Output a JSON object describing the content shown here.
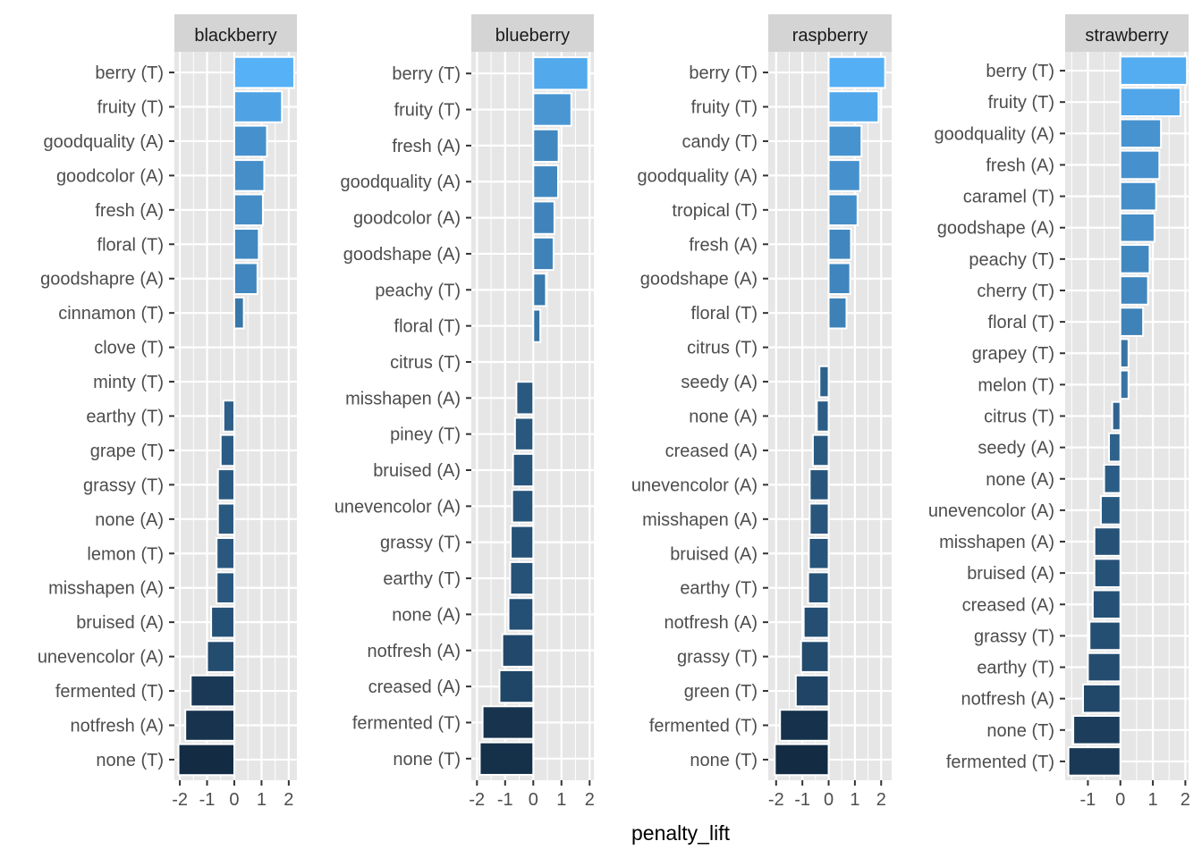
{
  "chart_data": {
    "type": "bar",
    "orientation": "horizontal",
    "xlabel": "penalty_lift",
    "ylabel": "",
    "grid": true,
    "legend": "none",
    "colors": {
      "panel_bg": "#e6e6e6",
      "grid": "#ffffff",
      "strip_bg": "#d4d4d4",
      "low": "#132b43",
      "high": "#56b1f7",
      "bar_outline": "#ffffff"
    },
    "panels": [
      {
        "title": "blackberry",
        "xlim": [
          -2.2,
          2.3
        ],
        "xticks": [
          -2,
          -1,
          0,
          1,
          2
        ],
        "xtick_labels": [
          "-2",
          "-1",
          "0",
          "1",
          "2"
        ],
        "categories": [
          "berry (T)",
          "fruity (T)",
          "goodquality (A)",
          "goodcolor (A)",
          "fresh (A)",
          "floral (T)",
          "goodshapre (A)",
          "cinnamon (T)",
          "clove (T)",
          "minty (T)",
          "earthy (T)",
          "grape (T)",
          "grassy (T)",
          "none (A)",
          "lemon (T)",
          "misshapen (A)",
          "bruised (A)",
          "unevencolor (A)",
          "fermented (T)",
          "notfresh (A)",
          "none (T)"
        ],
        "values": [
          2.2,
          1.75,
          1.2,
          1.1,
          1.05,
          0.9,
          0.85,
          0.35,
          0.0,
          0.0,
          -0.4,
          -0.5,
          -0.6,
          -0.6,
          -0.65,
          -0.65,
          -0.85,
          -1.0,
          -1.6,
          -1.8,
          -2.05
        ]
      },
      {
        "title": "blueberry",
        "xlim": [
          -2.2,
          2.15
        ],
        "xticks": [
          -2,
          -1,
          0,
          1,
          2
        ],
        "xtick_labels": [
          "-2",
          "-1",
          "0",
          "1",
          "2"
        ],
        "categories": [
          "berry (T)",
          "fruity (T)",
          "fresh (A)",
          "goodquality (A)",
          "goodcolor (A)",
          "goodshape (A)",
          "peachy (T)",
          "floral (T)",
          "citrus (T)",
          "misshapen (A)",
          "piney (T)",
          "bruised (A)",
          "unevencolor (A)",
          "grassy (T)",
          "earthy (T)",
          "none (A)",
          "notfresh (A)",
          "creased (A)",
          "fermented (T)",
          "none (T)"
        ],
        "values": [
          1.95,
          1.35,
          0.9,
          0.88,
          0.75,
          0.72,
          0.45,
          0.25,
          0.0,
          -0.6,
          -0.65,
          -0.72,
          -0.75,
          -0.8,
          -0.82,
          -0.88,
          -1.1,
          -1.2,
          -1.8,
          -1.9
        ]
      },
      {
        "title": "raspberry",
        "xlim": [
          -2.3,
          2.4
        ],
        "xticks": [
          -2,
          -1,
          0,
          1,
          2
        ],
        "xtick_labels": [
          "-2",
          "-1",
          "0",
          "1",
          "2"
        ],
        "categories": [
          "berry (T)",
          "fruity (T)",
          "candy (T)",
          "goodquality (A)",
          "tropical (T)",
          "fresh (A)",
          "goodshape (A)",
          "floral (T)",
          "citrus (T)",
          "seedy (A)",
          "none (A)",
          "creased (A)",
          "unevencolor (A)",
          "misshapen (A)",
          "bruised (A)",
          "earthy (T)",
          "notfresh (A)",
          "grassy (T)",
          "green (T)",
          "fermented (T)",
          "none (T)"
        ],
        "values": [
          2.15,
          1.9,
          1.25,
          1.2,
          1.1,
          0.85,
          0.82,
          0.68,
          0.0,
          -0.35,
          -0.45,
          -0.6,
          -0.72,
          -0.72,
          -0.75,
          -0.78,
          -0.95,
          -1.05,
          -1.25,
          -1.85,
          -2.05
        ]
      },
      {
        "title": "strawberry",
        "xlim": [
          -1.7,
          2.1
        ],
        "xticks": [
          -1,
          0,
          1,
          2
        ],
        "xtick_labels": [
          "-1",
          "0",
          "1",
          "2"
        ],
        "categories": [
          "berry (T)",
          "fruity (T)",
          "goodquality (A)",
          "fresh (A)",
          "caramel (T)",
          "goodshape (A)",
          "peachy (T)",
          "cherry (T)",
          "floral (T)",
          "grapey (T)",
          "melon (T)",
          "citrus (T)",
          "seedy (A)",
          "none (A)",
          "unevencolor (A)",
          "misshapen (A)",
          "bruised (A)",
          "creased (A)",
          "grassy (T)",
          "earthy (T)",
          "notfresh (A)",
          "none (T)",
          "fermented (T)"
        ],
        "values": [
          2.05,
          1.85,
          1.25,
          1.2,
          1.1,
          1.05,
          0.9,
          0.85,
          0.7,
          0.25,
          0.25,
          -0.25,
          -0.35,
          -0.5,
          -0.6,
          -0.8,
          -0.8,
          -0.85,
          -0.95,
          -1.0,
          -1.15,
          -1.45,
          -1.6
        ]
      }
    ]
  }
}
